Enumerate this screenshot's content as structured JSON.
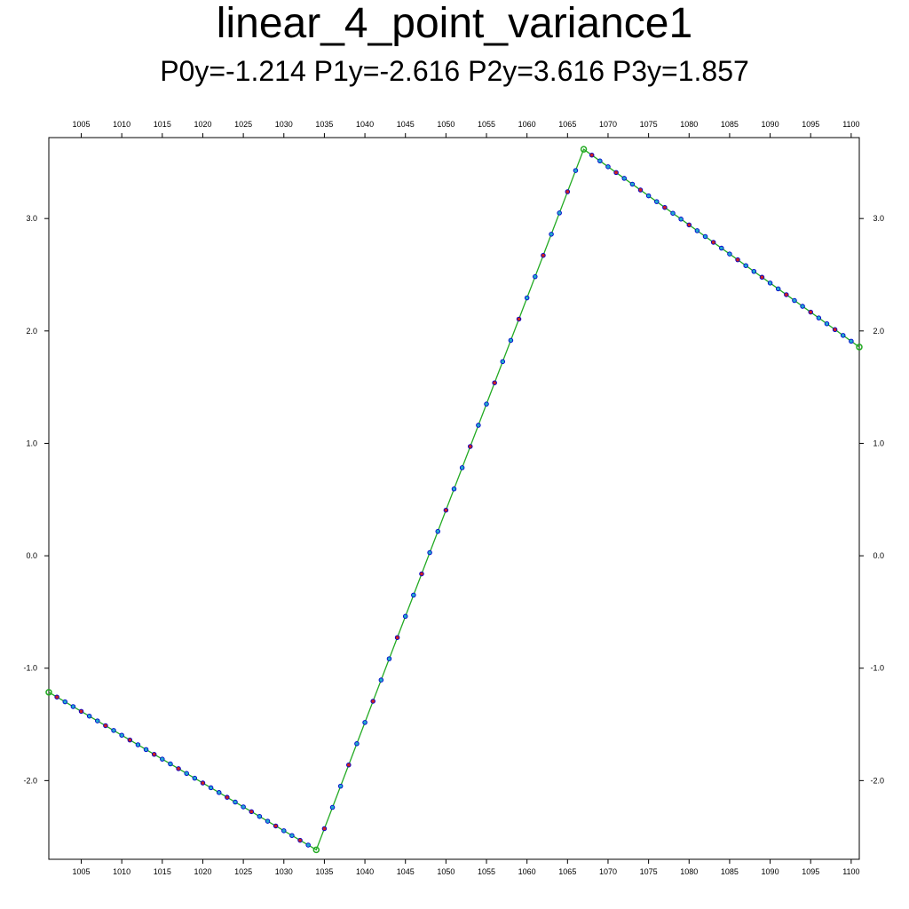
{
  "chart_data": {
    "type": "line",
    "title": "linear_4_point_variance1",
    "subtitle": "P0y=-1.214 P1y=-2.616 P2y=3.616 P3y=1.857",
    "xlabel": "",
    "ylabel": "",
    "xlim": [
      1001,
      1101
    ],
    "ylim": [
      -2.7,
      3.72
    ],
    "grid": false,
    "x_ticks": [
      1005,
      1010,
      1015,
      1020,
      1025,
      1030,
      1035,
      1040,
      1045,
      1050,
      1055,
      1060,
      1065,
      1070,
      1075,
      1080,
      1085,
      1090,
      1095,
      1100
    ],
    "y_ticks": [
      -2.0,
      -1.0,
      0.0,
      1.0,
      2.0,
      3.0
    ],
    "control_points": [
      {
        "x": 1001,
        "y": -1.214
      },
      {
        "x": 1034,
        "y": -2.616
      },
      {
        "x": 1067,
        "y": 3.616
      },
      {
        "x": 1101,
        "y": 1.857
      }
    ],
    "colors": {
      "control_line": "#22aa22",
      "marker_edge": "#0000cc",
      "marker_fill": "#22aacc",
      "marker_fill_alt": "#cc2222",
      "control_marker": "#22aa22"
    }
  }
}
